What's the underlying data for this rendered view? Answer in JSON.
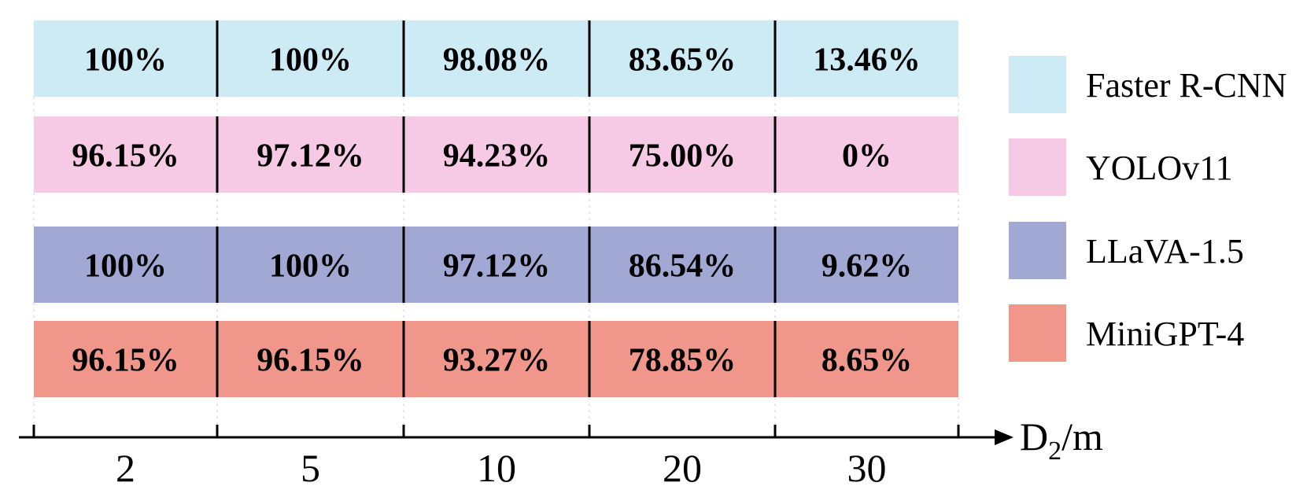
{
  "chart_data": {
    "type": "table",
    "x": [
      "2",
      "5",
      "10",
      "20",
      "30"
    ],
    "xlabel": "D",
    "xlabel_subscript": "2",
    "xlabel_unit": "/m",
    "series": [
      {
        "name": "Faster R-CNN",
        "color": "#cdebf4",
        "values": [
          100,
          100,
          98.08,
          83.65,
          13.46
        ],
        "labels": [
          "100%",
          "100%",
          "98.08%",
          "83.65%",
          "13.46%"
        ]
      },
      {
        "name": "YOLOv11",
        "color": "#f6cae4",
        "values": [
          96.15,
          97.12,
          94.23,
          75.0,
          0
        ],
        "labels": [
          "96.15%",
          "97.12%",
          "94.23%",
          "75.00%",
          "0%"
        ]
      },
      {
        "name": "LLaVA-1.5",
        "color": "#a0a8d3",
        "values": [
          100,
          100,
          97.12,
          86.54,
          9.62
        ],
        "labels": [
          "100%",
          "100%",
          "97.12%",
          "86.54%",
          "9.62%"
        ]
      },
      {
        "name": "MiniGPT-4",
        "color": "#f0968a",
        "values": [
          96.15,
          96.15,
          93.27,
          78.85,
          8.65
        ],
        "labels": [
          "96.15%",
          "96.15%",
          "93.27%",
          "78.85%",
          "8.65%"
        ]
      }
    ],
    "legend_position": "right",
    "grid": false
  }
}
